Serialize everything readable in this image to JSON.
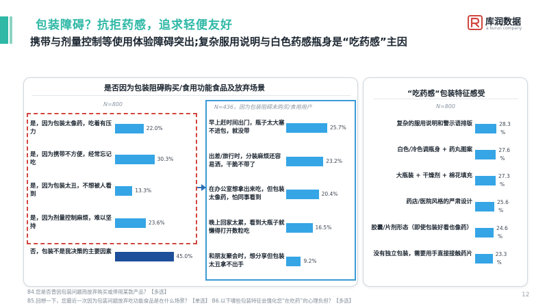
{
  "header": {
    "headline": "包装障碍？抗拒药感，追求轻便友好",
    "subheadline": "携带与剂量控制等使用体验障碍突出;复杂服用说明与白色药感瓶身是“吃药感”主因"
  },
  "logo": {
    "name": "库润数据",
    "tagline": "a kurun company",
    "mark_icon": "kurun-logo-icon"
  },
  "panels": {
    "left_title": "是否因为包装阻碍购买/食用功能食品及放弃场景",
    "left_n": "N=800",
    "middle_n": "N=436，因为包装阻碍未购买/食用用户",
    "right_title": "“吃药感“包装特征感受",
    "right_n": "N=800"
  },
  "colors": {
    "bar_light": "#35a5e6",
    "bar_highlight": "#1d4f9a",
    "accent": "#2fb8a6",
    "highlight_box": "#d0463f",
    "scene_box": "#3a9ad6"
  },
  "chart_data": [
    {
      "type": "bar",
      "orientation": "horizontal",
      "title": "是否因为包装阻碍购买/食用功能食品及放弃场景",
      "n": "N=800",
      "categories": [
        "是，因为包装太像药，吃着有压力",
        "是，因为携带不方便，经常忘记吃",
        "是，因为包装太丑，不想被人看到",
        "是，因为剂量控制麻烦，难以坚持",
        "否，包装不是我决策的主要因素"
      ],
      "values": [
        22.0,
        30.3,
        13.3,
        23.6,
        45.0
      ],
      "labels": [
        "22.0%",
        "30.3%",
        "13.3%",
        "23.6%",
        "45.0%"
      ],
      "highlight_index": 4,
      "xlim": [
        0,
        50
      ]
    },
    {
      "type": "bar",
      "orientation": "horizontal",
      "n": "N=436，因为包装阻碍未购买/食用用户",
      "categories": [
        "早上赶时间出门，瓶子太大塞不进包，就没带",
        "出差/旅行时，分装麻烦还容易洒，干脆不带了",
        "在办公室想拿出来吃，但包装太像药，怕同事看到",
        "晚上回家太累，看到大瓶子就懒得打开数粒吃",
        "和朋友聚会时，想分享但包装太丑拿不出手"
      ],
      "values": [
        25.7,
        23.2,
        20.4,
        16.5,
        9.2
      ],
      "labels": [
        "25.7%",
        "23.2%",
        "20.4%",
        "16.5%",
        "9.2%"
      ],
      "xlim": [
        0,
        30
      ]
    },
    {
      "type": "bar",
      "orientation": "horizontal",
      "title": "“吃药感“包装特征感受",
      "n": "N=800",
      "categories": [
        "复杂的服用说明和警示语排版",
        "白色/冷色调瓶身 + 药丸图案",
        "大瓶装 + 干燥剂 + 棉花填充",
        "药店/医院风格的严肃设计",
        "胶囊/片剂形态（即使包装好看也像药）",
        "没有独立包装，需要用手直接接触药片"
      ],
      "values": [
        28.3,
        27.6,
        27.3,
        25.6,
        24.6,
        23.3
      ],
      "labels": [
        "28.3",
        "27.6",
        "27.3",
        "25.6",
        "24.6",
        "23.3"
      ],
      "unit": "%",
      "xlim": [
        0,
        30
      ]
    }
  ],
  "footnotes": [
    "B4.您是否曾因包装问题而放弃购买或停用某款产品？【多选】",
    "B5.回想一下，您最近一次因为包装问题放弃吃功能食品是在什么场景？【单选】 B6.以下哪些包装特征会强化您“在吃药”的心理负担？【多选】"
  ],
  "page_number": "12"
}
